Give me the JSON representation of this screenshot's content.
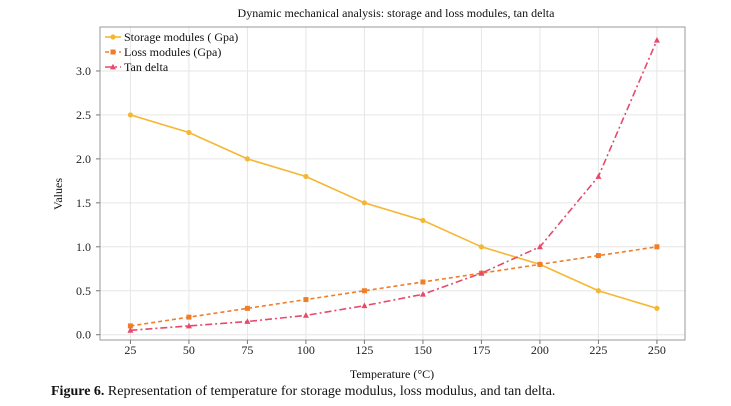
{
  "chart_data": {
    "type": "line",
    "title": "Dynamic mechanical analysis: storage and loss modules, tan delta",
    "xlabel": "Temperature (°C)",
    "ylabel": "Values",
    "x": [
      25,
      50,
      75,
      100,
      125,
      150,
      175,
      200,
      225,
      250
    ],
    "xlim": [
      12,
      262
    ],
    "ylim": [
      -0.06,
      3.5
    ],
    "yticks": [
      0.0,
      0.5,
      1.0,
      1.5,
      2.0,
      2.5,
      3.0
    ],
    "yticklabels": [
      "0.0",
      "0.5",
      "1.0",
      "1.5",
      "2.0",
      "2.5",
      "3.0"
    ],
    "grid": true,
    "legend_position": "top-left",
    "series": [
      {
        "name": "Storage modules ( Gpa)",
        "color": "#f5b731",
        "dash": "solid",
        "marker": "circle",
        "values": [
          2.5,
          2.3,
          2.0,
          1.8,
          1.5,
          1.3,
          1.0,
          0.8,
          0.5,
          0.3
        ]
      },
      {
        "name": "Loss modules (Gpa)",
        "color": "#f07d2a",
        "dash": "dashed",
        "marker": "square",
        "values": [
          0.1,
          0.2,
          0.3,
          0.4,
          0.5,
          0.6,
          0.7,
          0.8,
          0.9,
          1.0
        ]
      },
      {
        "name": "Tan delta",
        "color": "#e8496b",
        "dash": "dashdot",
        "marker": "triangle",
        "values": [
          0.05,
          0.1,
          0.15,
          0.22,
          0.33,
          0.46,
          0.7,
          1.0,
          1.8,
          3.35
        ]
      }
    ]
  },
  "caption": {
    "label": "Figure 6.",
    "text": " Representation of temperature for storage modulus, loss modulus, and tan delta."
  }
}
